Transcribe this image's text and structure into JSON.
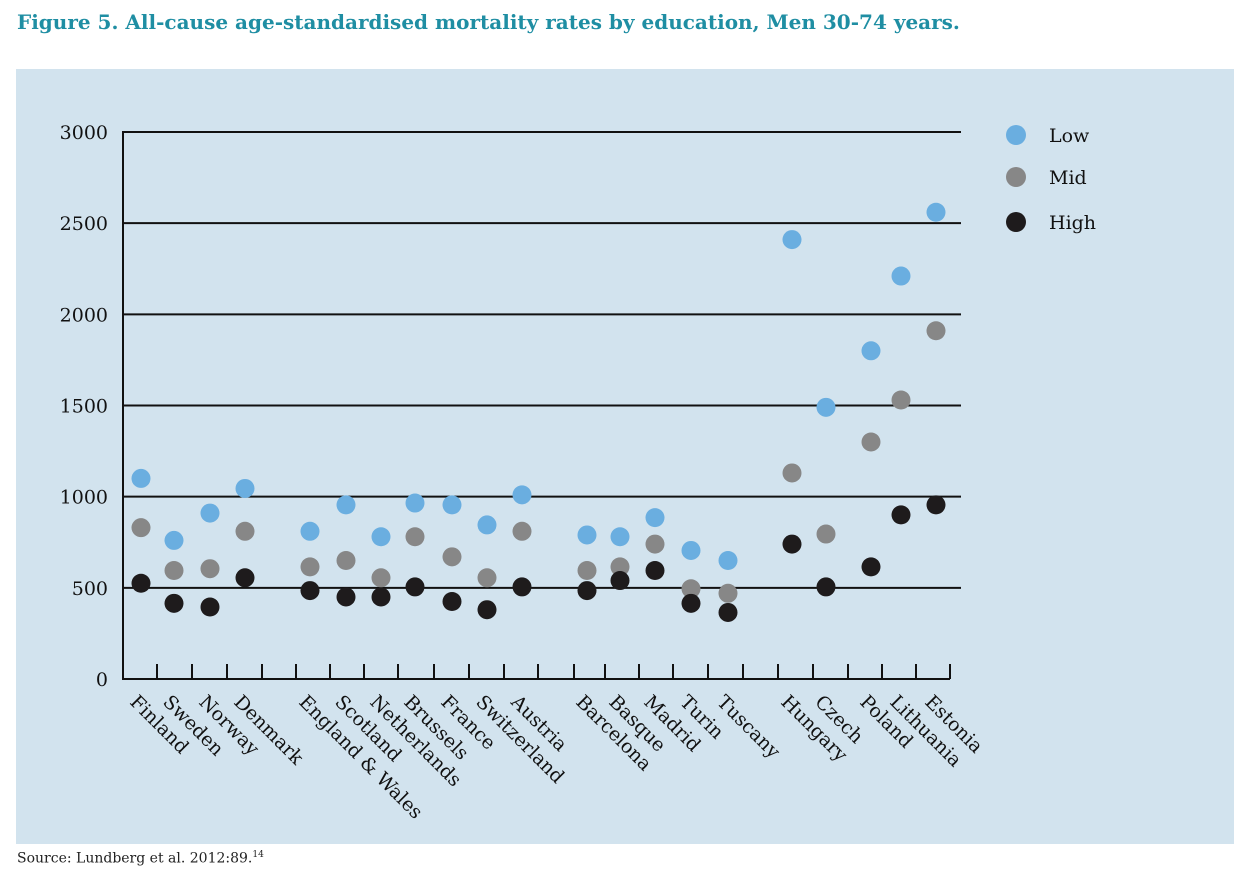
{
  "figure": {
    "title": "Figure 5. All-cause age-standardised mortality rates by education, Men 30-74 years.",
    "source_text": "Source: Lundberg et al.  2012:89.",
    "source_ref": "14"
  },
  "colors": {
    "background": "#d2e3ee",
    "title": "#1f8ea3",
    "low": "#6aaee0",
    "mid": "#878787",
    "high": "#1e1b1c",
    "axis": "#111111"
  },
  "chart_data": {
    "type": "scatter",
    "title": "All-cause age-standardised mortality rates by education, Men 30-74 years",
    "xlabel": "",
    "ylabel": "",
    "ylim": [
      0,
      3000
    ],
    "yticks": [
      0,
      500,
      1000,
      1500,
      2000,
      2500,
      3000
    ],
    "grid": true,
    "legend_position": "top-right",
    "categories": [
      "Finland",
      "Sweden",
      "Norway",
      "Denmark",
      "England & Wales",
      "Scotland",
      "Netherlands",
      "Brussels",
      "France",
      "Switzerland",
      "Austria",
      "Barcelona",
      "Basque",
      "Madrid",
      "Turin",
      "Tuscany",
      "Hungary",
      "Czech",
      "Poland",
      "Lithuania",
      "Estonia"
    ],
    "series": [
      {
        "name": "Low",
        "color": "#6aaee0",
        "values": [
          1100,
          760,
          910,
          1045,
          810,
          955,
          780,
          965,
          955,
          845,
          1010,
          790,
          780,
          885,
          705,
          650,
          2410,
          1490,
          1800,
          2210,
          2560
        ]
      },
      {
        "name": "Mid",
        "color": "#878787",
        "values": [
          830,
          595,
          605,
          810,
          615,
          650,
          555,
          780,
          670,
          555,
          810,
          595,
          615,
          740,
          495,
          470,
          1130,
          795,
          1300,
          1530,
          1910
        ]
      },
      {
        "name": "High",
        "color": "#1e1b1c",
        "values": [
          525,
          415,
          395,
          555,
          485,
          450,
          450,
          505,
          425,
          380,
          505,
          485,
          540,
          595,
          415,
          365,
          740,
          505,
          615,
          900,
          955
        ]
      }
    ]
  }
}
